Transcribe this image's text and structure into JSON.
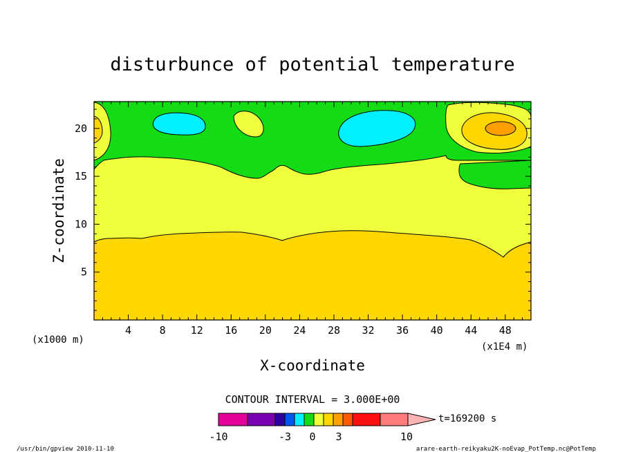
{
  "chart_data": {
    "type": "contour",
    "title": "disturbunce of potential temperature",
    "xlabel": "X-coordinate",
    "ylabel": "Z-coordinate",
    "x_unit_left": "(x1000 m)",
    "x_unit_right": "(x1E4 m)",
    "xlim": [
      0,
      51
    ],
    "ylim": [
      0,
      22.8
    ],
    "x_ticks": [
      4,
      8,
      12,
      16,
      20,
      24,
      28,
      32,
      36,
      40,
      44,
      48
    ],
    "y_ticks": [
      5,
      10,
      15,
      20
    ],
    "contour_interval_label": "CONTOUR INTERVAL = 3.000E+00",
    "time_label": "t=169200 s",
    "colorbar": {
      "tick_labels": [
        "-10",
        "-3",
        "0",
        "3",
        "10"
      ],
      "colors": [
        "#e6009a",
        "#7a00b4",
        "#2c00a0",
        "#0058f0",
        "#00f0ff",
        "#14dc14",
        "#f0ff3c",
        "#ffd700",
        "#ffa000",
        "#ff5a00",
        "#ff0f0f",
        "#ff7a7a",
        "#ffb4b4"
      ]
    },
    "regions": [
      {
        "level": "6 to 9",
        "color": "#ffd700",
        "description": "lower layer, z below ~9"
      },
      {
        "level": "3 to 6",
        "color": "#f0ff3c",
        "description": "middle layer, z ~9 to ~16"
      },
      {
        "level": "0 to 3",
        "color": "#14dc14",
        "description": "upper layer, z ~16 to top"
      },
      {
        "level": "-3 to 0",
        "color": "#00f0ff",
        "description": "cells near x=9.5,z=20.5 and x=32,z=20"
      },
      {
        "level": "9 to 12",
        "color": "#ffa000",
        "description": "cell near x=47,z=20"
      }
    ]
  },
  "footer": {
    "left": "/usr/bin/gpview  2010-11-10",
    "right": "arare-earth-reikyaku2K-noEvap_PotTemp.nc@PotTemp"
  },
  "colors": {
    "background": "#ffffff",
    "axis": "#000000"
  }
}
